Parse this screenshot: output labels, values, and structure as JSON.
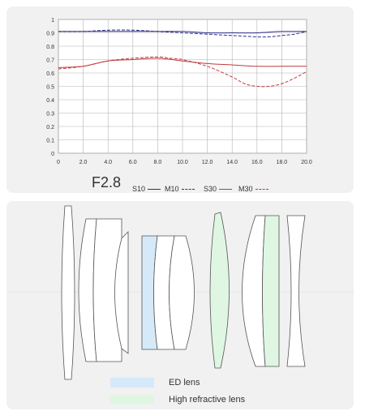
{
  "chart_data": {
    "type": "line",
    "xlim": [
      0,
      20
    ],
    "ylim": [
      0,
      1
    ],
    "x_ticks": [
      "0",
      "2.0",
      "4.0",
      "6.0",
      "8.0",
      "10.0",
      "12.0",
      "14.0",
      "16.0",
      "18.0",
      "20.0"
    ],
    "y_ticks": [
      "0",
      "0.1",
      "0.2",
      "0.3",
      "0.4",
      "0.5",
      "0.6",
      "0.7",
      "0.8",
      "0.9",
      "1"
    ],
    "grid": true,
    "aperture_label": "F2.8",
    "series": [
      {
        "name": "S10",
        "color": "#2c2c8c",
        "dash": "solid",
        "x": [
          0,
          2,
          4,
          6,
          8,
          10,
          12,
          14,
          16,
          18,
          20
        ],
        "y": [
          0.91,
          0.91,
          0.91,
          0.91,
          0.91,
          0.91,
          0.9,
          0.9,
          0.9,
          0.91,
          0.91
        ]
      },
      {
        "name": "M10",
        "color": "#2c2c8c",
        "dash": "dashed",
        "x": [
          0,
          2,
          4,
          6,
          8,
          10,
          12,
          14,
          16,
          17,
          18,
          19,
          20
        ],
        "y": [
          0.91,
          0.91,
          0.92,
          0.92,
          0.91,
          0.9,
          0.89,
          0.88,
          0.87,
          0.87,
          0.88,
          0.89,
          0.91
        ]
      },
      {
        "name": "S30",
        "color": "#c0393b",
        "dash": "solid",
        "x": [
          0,
          2,
          4,
          6,
          8,
          10,
          12,
          14,
          16,
          18,
          20
        ],
        "y": [
          0.64,
          0.65,
          0.69,
          0.7,
          0.71,
          0.69,
          0.67,
          0.66,
          0.65,
          0.65,
          0.65
        ]
      },
      {
        "name": "M30",
        "color": "#c0393b",
        "dash": "dashed",
        "x": [
          0,
          2,
          4,
          6,
          8,
          9,
          10,
          12,
          14,
          15,
          16,
          17,
          18,
          19,
          20
        ],
        "y": [
          0.63,
          0.65,
          0.69,
          0.71,
          0.72,
          0.71,
          0.7,
          0.65,
          0.57,
          0.52,
          0.5,
          0.5,
          0.52,
          0.56,
          0.61
        ]
      }
    ]
  },
  "legend": [
    {
      "label": "S10"
    },
    {
      "label": "M10"
    },
    {
      "label": "S30"
    },
    {
      "label": "M30"
    }
  ],
  "lens_legend": {
    "ed_label": "ED lens",
    "ed_color": "#d6e9f8",
    "hr_label": "High refractive lens",
    "hr_color": "#dff6e3"
  }
}
